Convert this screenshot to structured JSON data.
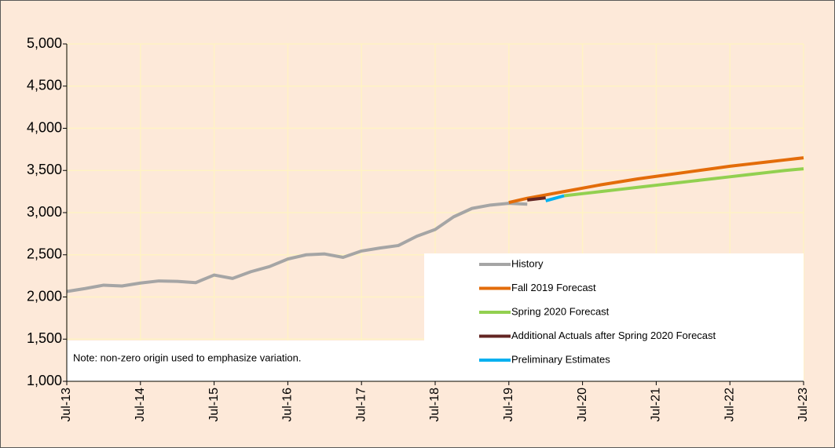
{
  "chart_data": {
    "type": "line",
    "note": "Note: non-zero origin used to emphasize variation.",
    "categories": [
      "Jul-13",
      null,
      null,
      null,
      "Jul-14",
      null,
      null,
      null,
      "Jul-15",
      null,
      null,
      null,
      "Jul-16",
      null,
      null,
      null,
      "Jul-17",
      null,
      null,
      null,
      "Jul-18",
      null,
      null,
      null,
      "Jul-19",
      null,
      null,
      null,
      "Jul-20",
      null,
      null,
      null,
      "Jul-21",
      null,
      null,
      null,
      "Jul-22",
      null,
      null,
      null,
      "Jul-23"
    ],
    "series": [
      {
        "name": "History",
        "color": "#a5a5a5",
        "values": [
          2065,
          2100,
          2140,
          2130,
          2165,
          2190,
          2185,
          2170,
          2260,
          2220,
          2300,
          2360,
          2450,
          2500,
          2510,
          2470,
          2545,
          2580,
          2610,
          2720,
          2800,
          2950,
          3050,
          3090,
          3110,
          3100,
          null,
          null,
          null,
          null,
          null,
          null,
          null,
          null,
          null,
          null,
          null,
          null,
          null,
          null,
          null
        ]
      },
      {
        "name": "Fall 2019 Forecast",
        "color": "#e36c0a",
        "values": [
          null,
          null,
          null,
          null,
          null,
          null,
          null,
          null,
          null,
          null,
          null,
          null,
          null,
          null,
          null,
          null,
          null,
          null,
          null,
          null,
          null,
          null,
          null,
          null,
          3120,
          3170,
          3210,
          3250,
          3290,
          3330,
          3365,
          3400,
          3430,
          3460,
          3490,
          3520,
          3550,
          3575,
          3600,
          3625,
          3650
        ]
      },
      {
        "name": "Spring 2020 Forecast",
        "color": "#92d050",
        "values": [
          null,
          null,
          null,
          null,
          null,
          null,
          null,
          null,
          null,
          null,
          null,
          null,
          null,
          null,
          null,
          null,
          null,
          null,
          null,
          null,
          null,
          null,
          null,
          null,
          null,
          null,
          null,
          3200,
          3225,
          3250,
          3275,
          3300,
          3325,
          3350,
          3375,
          3400,
          3425,
          3450,
          3475,
          3500,
          3520
        ]
      },
      {
        "name": "Additional Actuals after Spring 2020 Forecast",
        "color": "#632523",
        "values": [
          null,
          null,
          null,
          null,
          null,
          null,
          null,
          null,
          null,
          null,
          null,
          null,
          null,
          null,
          null,
          null,
          null,
          null,
          null,
          null,
          null,
          null,
          null,
          null,
          null,
          3150,
          3175,
          null,
          null,
          null,
          null,
          null,
          null,
          null,
          null,
          null,
          null,
          null,
          null,
          null,
          null
        ]
      },
      {
        "name": "Preliminary Estimates",
        "color": "#00b0f0",
        "values": [
          null,
          null,
          null,
          null,
          null,
          null,
          null,
          null,
          null,
          null,
          null,
          null,
          null,
          null,
          null,
          null,
          null,
          null,
          null,
          null,
          null,
          null,
          null,
          null,
          null,
          null,
          3140,
          3200,
          null,
          null,
          null,
          null,
          null,
          null,
          null,
          null,
          null,
          null,
          null,
          null,
          null
        ]
      }
    ],
    "ylim": [
      1000,
      5000
    ],
    "yticks": [
      {
        "value": 1000,
        "label": "1,000"
      },
      {
        "value": 1500,
        "label": "1,500"
      },
      {
        "value": 2000,
        "label": "2,000"
      },
      {
        "value": 2500,
        "label": "2,500"
      },
      {
        "value": 3000,
        "label": "3,000"
      },
      {
        "value": 3500,
        "label": "3,500"
      },
      {
        "value": 4000,
        "label": "4,000"
      },
      {
        "value": 4500,
        "label": "4,500"
      },
      {
        "value": 5000,
        "label": "5,000"
      }
    ],
    "grid": true,
    "legend": "lower right"
  }
}
